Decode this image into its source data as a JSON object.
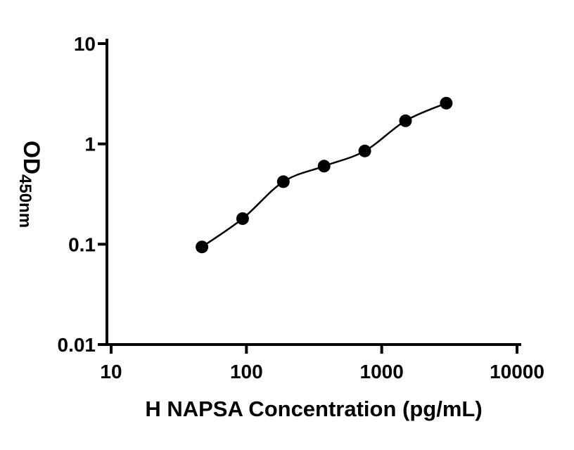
{
  "figure": {
    "background": "#ffffff",
    "ink_color": "#000000"
  },
  "chart_data": {
    "type": "scatter",
    "title": "",
    "xlabel": "H NAPSA Concentration (pg/mL)",
    "ylabel": "OD450nm",
    "ylabel_main": "OD",
    "ylabel_sub": "450nm",
    "xscale": "log",
    "yscale": "log",
    "xlim": [
      10,
      10000
    ],
    "ylim": [
      0.01,
      10
    ],
    "grid": false,
    "legend": false,
    "x_ticks": [
      {
        "value": 10,
        "label": "10"
      },
      {
        "value": 100,
        "label": "100"
      },
      {
        "value": 1000,
        "label": "1000"
      },
      {
        "value": 10000,
        "label": "10000"
      }
    ],
    "y_ticks": [
      {
        "value": 0.01,
        "label": "0.01"
      },
      {
        "value": 0.1,
        "label": "0.1"
      },
      {
        "value": 1,
        "label": "1"
      },
      {
        "value": 10,
        "label": "10"
      }
    ],
    "series": [
      {
        "marker": "filled-circle",
        "color": "#000000",
        "trendline": true,
        "points": [
          {
            "x": 46.88,
            "y": 0.094
          },
          {
            "x": 93.75,
            "y": 0.18
          },
          {
            "x": 187.5,
            "y": 0.42
          },
          {
            "x": 375,
            "y": 0.6
          },
          {
            "x": 750,
            "y": 0.85
          },
          {
            "x": 1500,
            "y": 1.7
          },
          {
            "x": 3000,
            "y": 2.55
          }
        ]
      }
    ]
  }
}
